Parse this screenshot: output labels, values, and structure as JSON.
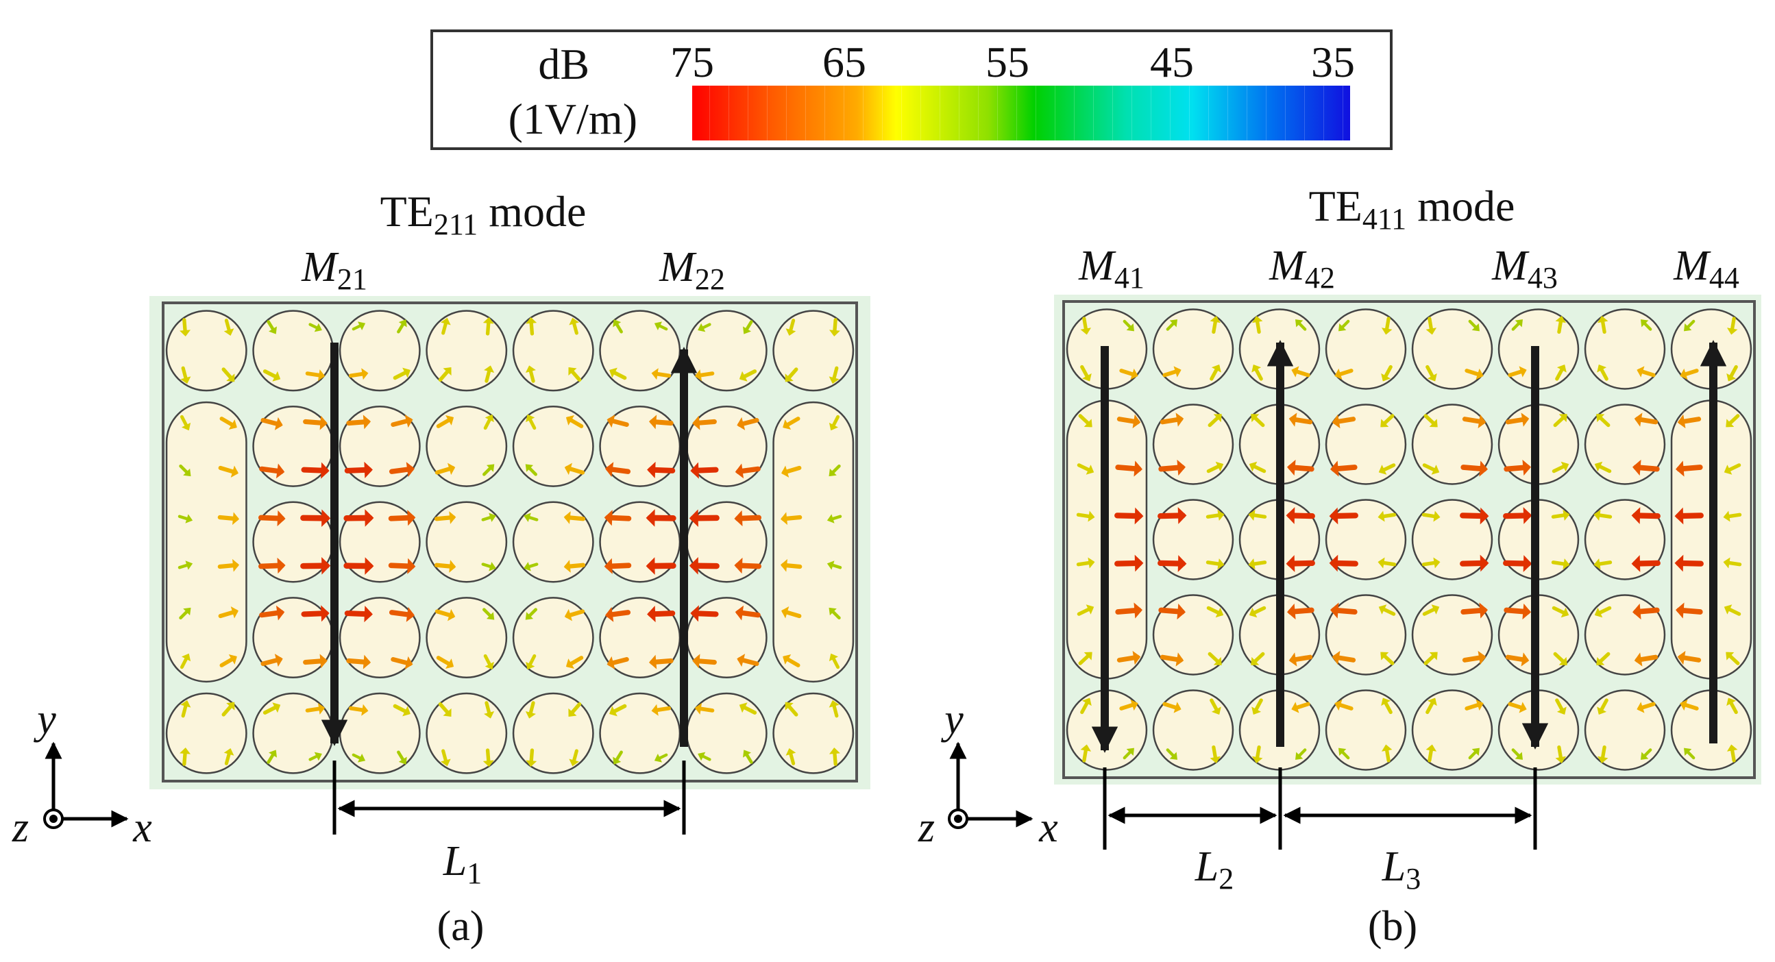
{
  "colorbar": {
    "unit_line1": "dB",
    "unit_line2": "(1V/m)",
    "ticks": [
      "75",
      "65",
      "55",
      "45",
      "35"
    ]
  },
  "panel_a": {
    "title_prefix": "TE",
    "title_sub": "211",
    "title_suffix": " mode",
    "magnets": [
      {
        "base": "M",
        "sub": "21",
        "direction": "down"
      },
      {
        "base": "M",
        "sub": "22",
        "direction": "up"
      }
    ],
    "distance": {
      "base": "L",
      "sub": "1"
    },
    "caption": "(a)",
    "axes": {
      "x": "x",
      "y": "y",
      "z": "z"
    }
  },
  "panel_b": {
    "title_prefix": "TE",
    "title_sub": "411",
    "title_suffix": " mode",
    "magnets": [
      {
        "base": "M",
        "sub": "41",
        "direction": "down"
      },
      {
        "base": "M",
        "sub": "42",
        "direction": "up"
      },
      {
        "base": "M",
        "sub": "43",
        "direction": "down"
      },
      {
        "base": "M",
        "sub": "44",
        "direction": "up"
      }
    ],
    "distances": [
      {
        "base": "L",
        "sub": "2"
      },
      {
        "base": "L",
        "sub": "3"
      }
    ],
    "caption": "(b)",
    "axes": {
      "x": "x",
      "y": "y",
      "z": "z"
    }
  }
}
